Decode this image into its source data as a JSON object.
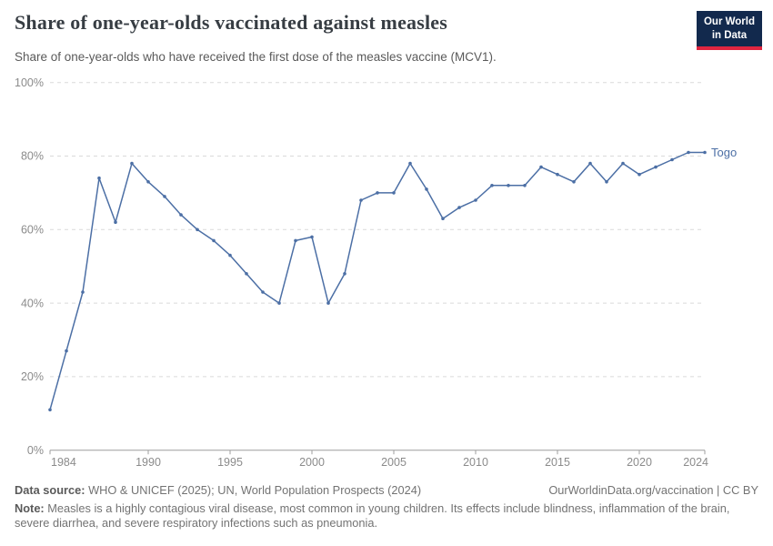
{
  "header": {
    "title": "Share of one-year-olds vaccinated against measles",
    "subtitle": "Share of one-year-olds who have received the first dose of the measles vaccine (MCV1).",
    "logo_line1": "Our World",
    "logo_line2": "in Data"
  },
  "chart_data": {
    "type": "line",
    "title": "Share of one-year-olds vaccinated against measles",
    "xlabel": "",
    "ylabel": "",
    "xlim": [
      1984,
      2024
    ],
    "ylim": [
      0,
      100
    ],
    "x_ticks": [
      1984,
      1990,
      1995,
      2000,
      2005,
      2010,
      2015,
      2020,
      2024
    ],
    "y_ticks": [
      0,
      20,
      40,
      60,
      80,
      100
    ],
    "y_tick_suffix": "%",
    "grid": "horizontal-dashed",
    "legend_position": "end-of-line-label",
    "series": [
      {
        "name": "Togo",
        "color": "#4C6FA5",
        "x": [
          1984,
          1985,
          1986,
          1987,
          1988,
          1989,
          1990,
          1991,
          1992,
          1993,
          1994,
          1995,
          1996,
          1997,
          1998,
          1999,
          2000,
          2001,
          2002,
          2003,
          2004,
          2005,
          2006,
          2007,
          2008,
          2009,
          2010,
          2011,
          2012,
          2013,
          2014,
          2015,
          2016,
          2017,
          2018,
          2019,
          2020,
          2021,
          2022,
          2023,
          2024
        ],
        "values": [
          11,
          27,
          43,
          74,
          62,
          78,
          73,
          69,
          64,
          60,
          57,
          53,
          48,
          43,
          40,
          57,
          58,
          40,
          48,
          68,
          70,
          70,
          78,
          71,
          63,
          66,
          68,
          72,
          72,
          72,
          77,
          75,
          73,
          78,
          73,
          78,
          75,
          77,
          79,
          81,
          81
        ]
      }
    ]
  },
  "footer": {
    "data_source_label": "Data source:",
    "data_source_text": " WHO & UNICEF (2025); UN, World Population Prospects (2024)",
    "link_text": "OurWorldinData.org/vaccination | CC BY",
    "note_label": "Note:",
    "note_text": " Measles is a highly contagious viral disease, most common in young children. Its effects include blindness, inflammation of the brain, severe diarrhea, and severe respiratory infections such as pneumonia."
  },
  "colors": {
    "line": "#4C6FA5",
    "grid": "#dadada",
    "axis": "#9e9e9e",
    "tick_label": "#8b8b8b",
    "logo_bg": "#12294d",
    "logo_stripe": "#e02540"
  }
}
